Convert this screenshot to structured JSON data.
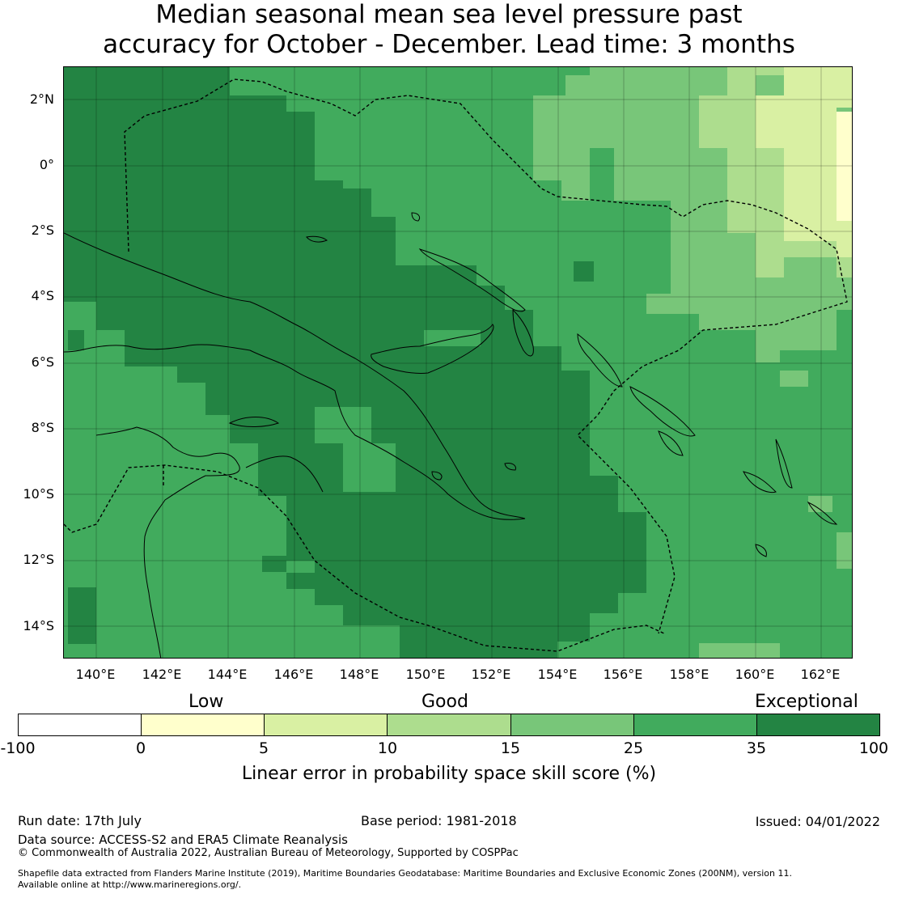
{
  "title_line1": "Median seasonal mean sea level pressure past",
  "title_line2": "accuracy for October - December. Lead time: 3 months",
  "lat_labels": [
    "2°N",
    "0°",
    "2°S",
    "4°S",
    "6°S",
    "8°S",
    "10°S",
    "12°S",
    "14°S"
  ],
  "lon_labels": [
    "140°E",
    "142°E",
    "144°E",
    "146°E",
    "148°E",
    "150°E",
    "152°E",
    "154°E",
    "156°E",
    "158°E",
    "160°E",
    "162°E"
  ],
  "legend": {
    "categories": [
      "Low",
      "Good",
      "Exceptional"
    ],
    "ticks": [
      "-100",
      "0",
      "5",
      "10",
      "15",
      "25",
      "35",
      "100"
    ],
    "colors": [
      "#ffffff",
      "#ffffcc",
      "#d9f0a3",
      "#addd8e",
      "#78c679",
      "#41ab5d",
      "#238443"
    ],
    "label": "Linear error in probability space skill score (%)"
  },
  "footer": {
    "run_date": "Run date: 17th July",
    "base_period": "Base period: 1981-2018",
    "issued": "Issued: 04/01/2022",
    "data_source": "Data source: ACCESS-S2 and ERA5 Climate Reanalysis",
    "copyright": "© Commonwealth of Australia 2022, Australian Bureau of Meteorology, Supported by COSPPac",
    "shapefile_line1": "Shapefile data extracted from Flanders Marine Institute (2019), Maritime Boundaries Geodatabase: Maritime Boundaries and Exclusive Economic Zones (200NM), version 11.",
    "shapefile_line2": "Available online at http://www.marineregions.org/."
  }
}
